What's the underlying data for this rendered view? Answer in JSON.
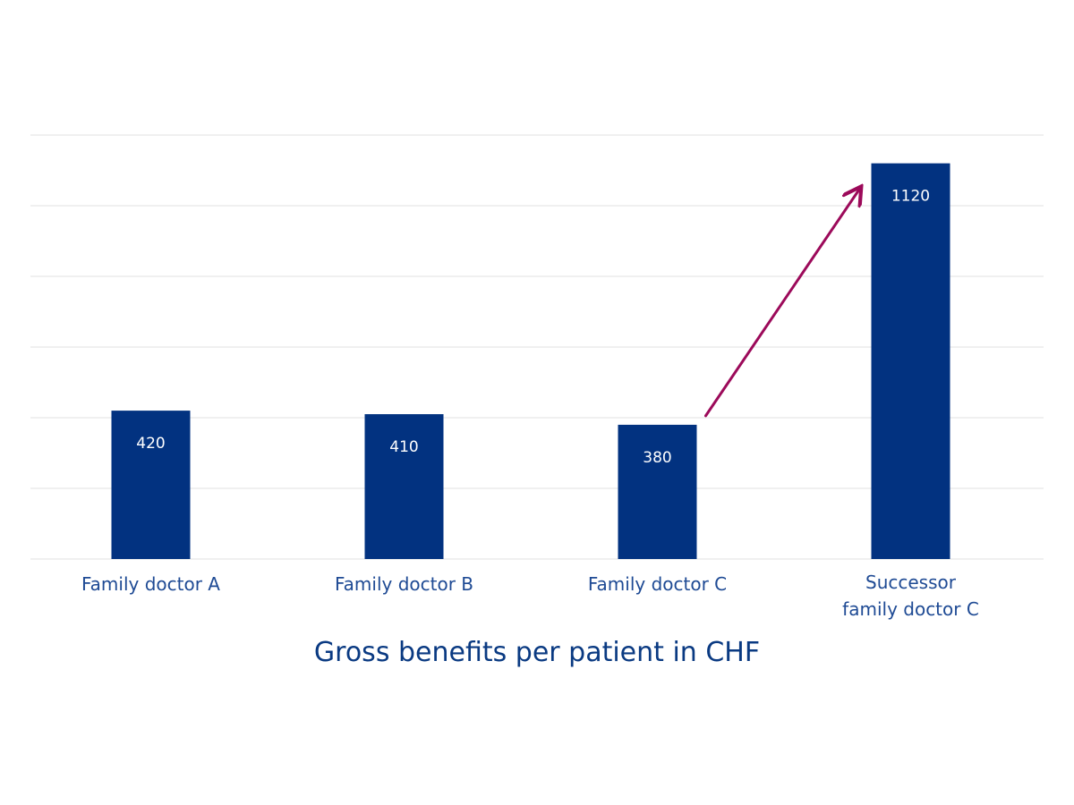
{
  "chart_data": {
    "type": "bar",
    "categories": [
      [
        "Family doctor A"
      ],
      [
        "Family doctor B"
      ],
      [
        "Family doctor C"
      ],
      [
        "Successor",
        "family doctor C"
      ]
    ],
    "values": [
      420,
      410,
      380,
      1120
    ],
    "data_labels": [
      "420",
      "410",
      "380",
      "1120"
    ],
    "title": "",
    "xlabel": "Gross benefits per patient in CHF",
    "ylabel": "",
    "ylim": [
      0,
      1200
    ],
    "y_gridlines": [
      0,
      200,
      400,
      600,
      800,
      1000,
      1200
    ],
    "grid": true,
    "legend": "none",
    "annotation": {
      "type": "arrow",
      "from_category": "Family doctor C",
      "to_category": "Successor family doctor C",
      "color": "#9c0a5a"
    },
    "colors": {
      "bar": "#023280",
      "bar_label": "#ffffff",
      "tick_label": "#1e4a94",
      "caption": "#0a3a82",
      "grid": "#e8e8e8"
    }
  }
}
